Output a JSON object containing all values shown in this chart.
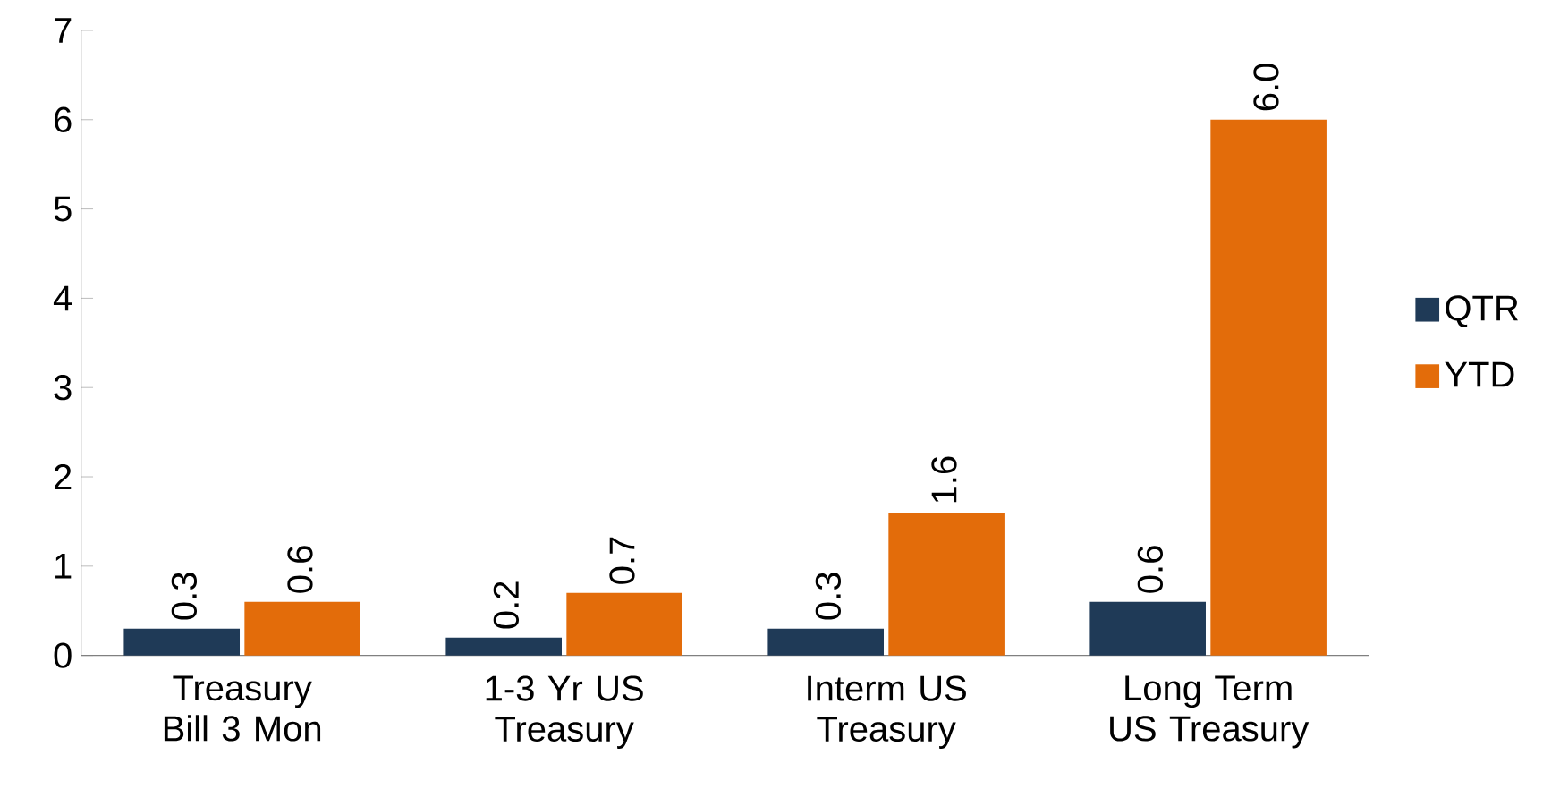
{
  "chart_data": {
    "type": "bar",
    "categories": [
      "Treasury Bill 3 Mon",
      "1-3 Yr US Treasury",
      "Interm US Treasury",
      "Long Term US Treasury"
    ],
    "series": [
      {
        "name": "QTR",
        "color": "#1f3a57",
        "values": [
          0.3,
          0.2,
          0.3,
          0.6
        ],
        "value_labels": [
          "0.3",
          "0.2",
          "0.3",
          "0.6"
        ]
      },
      {
        "name": "YTD",
        "color": "#e36c0a",
        "values": [
          0.6,
          0.7,
          1.6,
          6.0
        ],
        "value_labels": [
          "0.6",
          "0.7",
          "1.6",
          "6.0"
        ]
      }
    ],
    "ylim": [
      0,
      7
    ],
    "yticks": [
      0,
      1,
      2,
      3,
      4,
      5,
      6,
      7
    ],
    "legend": "right",
    "grid": false
  }
}
